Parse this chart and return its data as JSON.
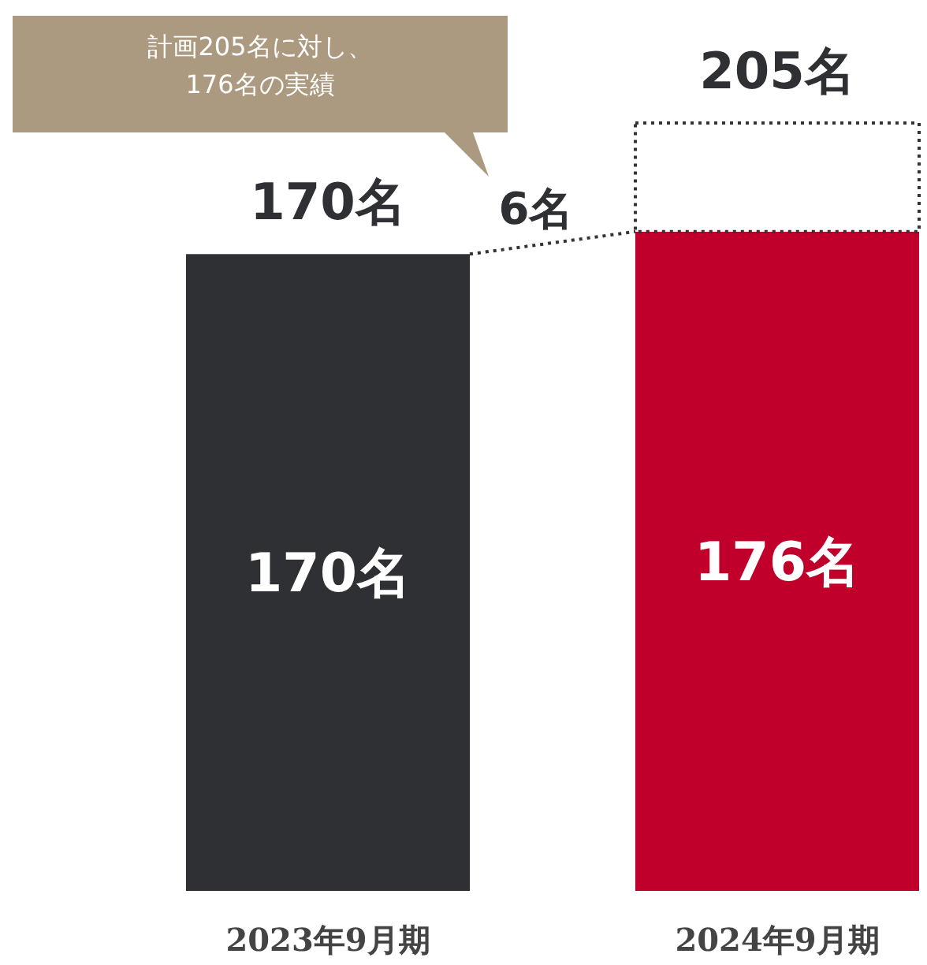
{
  "chart_data": {
    "type": "bar",
    "stacked": true,
    "categories": [
      "2023年9月期",
      "2024年9月期"
    ],
    "series": [
      {
        "colors": [
          "#2e3033",
          "#c0002a"
        ],
        "values": [
          170,
          176
        ],
        "value_labels": [
          "170名",
          "176名"
        ]
      },
      {
        "color": "#ffffff",
        "line_style": "dotted",
        "values": [
          null,
          29
        ]
      }
    ],
    "totals": [
      "170名",
      "205名"
    ],
    "annotations": [
      "計画205名に対し、176名の実績",
      "6名"
    ]
  }
}
